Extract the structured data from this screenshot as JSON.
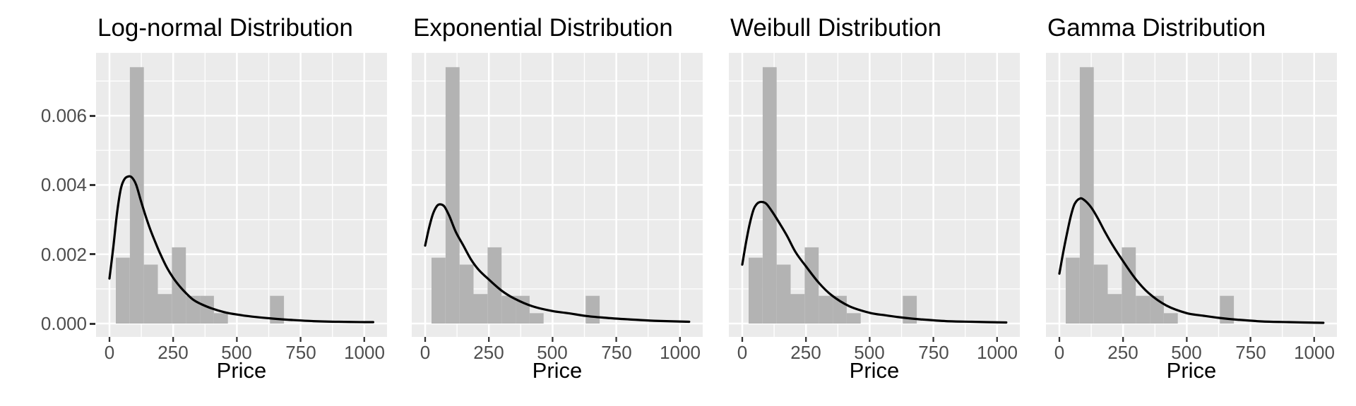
{
  "chart_data": {
    "type": "histogram+density",
    "layout": "4 side-by-side panels sharing one y axis",
    "xlabel": "Price",
    "x_ticks": [
      0,
      250,
      500,
      750,
      1000
    ],
    "x_tick_labels": [
      "0",
      "250",
      "500",
      "750",
      "1000"
    ],
    "x_minor_ticks": [
      125,
      375,
      625,
      875
    ],
    "y_ticks": [
      0,
      0.002,
      0.004,
      0.006
    ],
    "y_tick_labels": [
      "0.000",
      "0.002",
      "0.004",
      "0.006"
    ],
    "y_minor_ticks": [
      0.001,
      0.003,
      0.005,
      0.007
    ],
    "xlim": [
      -53,
      1089
    ],
    "ylim": [
      -0.0004,
      0.00781
    ],
    "grid": "white major and minor gridlines on gray panel",
    "legend": "none",
    "histogram": {
      "note": "same histogram repeated in every panel, density scale",
      "bin_width": 55,
      "bins": [
        {
          "start": 25,
          "density": 0.0019
        },
        {
          "start": 80,
          "density": 0.0074
        },
        {
          "start": 135,
          "density": 0.0017
        },
        {
          "start": 190,
          "density": 0.00085
        },
        {
          "start": 245,
          "density": 0.0022
        },
        {
          "start": 300,
          "density": 0.0008
        },
        {
          "start": 355,
          "density": 0.0008
        },
        {
          "start": 410,
          "density": 0.0003
        },
        {
          "start": 630,
          "density": 0.0008
        }
      ]
    },
    "panels": [
      {
        "key": "lognormal",
        "title": "Log-normal Distribution",
        "curve": {
          "x": [
            0,
            15,
            30,
            45,
            60,
            77,
            90,
            105,
            123,
            140,
            160,
            180,
            200,
            225,
            250,
            275,
            300,
            330,
            360,
            400,
            450,
            500,
            560,
            630,
            700,
            800,
            900,
            1035
          ],
          "density": [
            0.0013,
            0.0022,
            0.0032,
            0.0039,
            0.00418,
            0.00425,
            0.0042,
            0.004,
            0.00355,
            0.00315,
            0.00272,
            0.00235,
            0.002,
            0.00162,
            0.00132,
            0.00108,
            0.00088,
            0.00068,
            0.00056,
            0.00044,
            0.00033,
            0.00026,
            0.0002,
            0.00015,
            0.00011,
            7e-05,
            5e-05,
            4e-05
          ]
        }
      },
      {
        "key": "exponential",
        "title": "Exponential Distribution",
        "curve": {
          "x": [
            0,
            15,
            30,
            45,
            58,
            75,
            95,
            120,
            150,
            180,
            210,
            250,
            300,
            350,
            420,
            500,
            560,
            630,
            700,
            800,
            900,
            1036
          ],
          "density": [
            0.00225,
            0.00275,
            0.00315,
            0.00338,
            0.00344,
            0.00338,
            0.0031,
            0.00265,
            0.00225,
            0.00185,
            0.00155,
            0.00127,
            0.00095,
            0.00072,
            0.0005,
            0.00036,
            0.0003,
            0.00022,
            0.00017,
            0.00012,
            8e-05,
            5e-05
          ]
        }
      },
      {
        "key": "weibull",
        "title": "Weibull Distribution",
        "curve": {
          "x": [
            0,
            15,
            30,
            45,
            60,
            77,
            95,
            120,
            150,
            178,
            210,
            250,
            300,
            350,
            420,
            500,
            560,
            630,
            700,
            800,
            900,
            1036
          ],
          "density": [
            0.0017,
            0.00235,
            0.0029,
            0.0033,
            0.00347,
            0.00351,
            0.00345,
            0.0032,
            0.00285,
            0.0025,
            0.00205,
            0.00165,
            0.00118,
            0.00082,
            0.0005,
            0.00031,
            0.00024,
            0.00017,
            0.00012,
            7e-05,
            5e-05,
            3e-05
          ]
        }
      },
      {
        "key": "gamma",
        "title": "Gamma Distribution",
        "curve": {
          "x": [
            0,
            15,
            30,
            45,
            60,
            81,
            100,
            125,
            150,
            178,
            210,
            250,
            300,
            350,
            420,
            500,
            560,
            630,
            700,
            800,
            900,
            1036
          ],
          "density": [
            0.00144,
            0.00205,
            0.0026,
            0.0031,
            0.00345,
            0.00361,
            0.00355,
            0.00335,
            0.00305,
            0.00266,
            0.00225,
            0.0018,
            0.00128,
            0.00088,
            0.00052,
            0.0003,
            0.00023,
            0.00016,
            0.00011,
            6e-05,
            4e-05,
            2e-05
          ]
        }
      }
    ],
    "colors": {
      "panel_background": "#EBEBEB",
      "gridline": "#FFFFFF",
      "bar_fill": "#B3B3B3",
      "curve": "#000000",
      "axis_text": "#4D4D4D",
      "tick_mark": "#333333",
      "title_text": "#000000"
    }
  }
}
